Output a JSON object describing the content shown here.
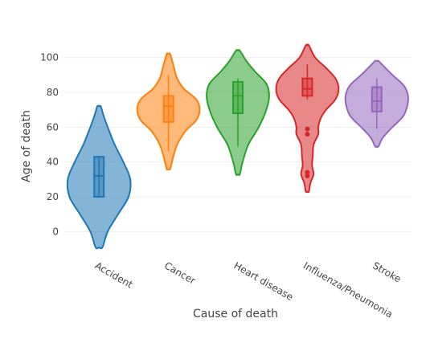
{
  "chart_data": {
    "type": "violin",
    "title": "",
    "xlabel": "Cause of death",
    "ylabel": "Age of death",
    "ylim": [
      -10,
      110
    ],
    "yticks": [
      0,
      20,
      40,
      60,
      80,
      100
    ],
    "grid": true,
    "legend": "none",
    "categories": [
      "Accident",
      "Cancer",
      "Heart disease",
      "Influenza/Pneumonia",
      "Stroke"
    ],
    "series": [
      {
        "category": "Accident",
        "color": "#1f77b4",
        "range": [
          -9,
          72
        ],
        "box": {
          "q1": 20,
          "median": 32,
          "q3": 43,
          "whisker_low": 20,
          "whisker_high": 43
        },
        "outliers": [],
        "density": [
          [
            -9,
            0.02
          ],
          [
            0,
            0.05
          ],
          [
            10,
            0.11
          ],
          [
            20,
            0.17
          ],
          [
            30,
            0.18
          ],
          [
            40,
            0.14
          ],
          [
            50,
            0.09
          ],
          [
            60,
            0.05
          ],
          [
            67,
            0.025
          ],
          [
            72,
            0.01
          ]
        ]
      },
      {
        "category": "Cancer",
        "color": "#ff7f0e",
        "range": [
          36,
          102
        ],
        "box": {
          "q1": 63,
          "median": 72,
          "q3": 78,
          "whisker_low": 46,
          "whisker_high": 90
        },
        "outliers": [],
        "density": [
          [
            36,
            0.01
          ],
          [
            42,
            0.025
          ],
          [
            50,
            0.05
          ],
          [
            58,
            0.1
          ],
          [
            64,
            0.16
          ],
          [
            70,
            0.18
          ],
          [
            76,
            0.16
          ],
          [
            82,
            0.09
          ],
          [
            88,
            0.05
          ],
          [
            95,
            0.03
          ],
          [
            102,
            0.01
          ]
        ]
      },
      {
        "category": "Heart disease",
        "color": "#2ca02c",
        "range": [
          33,
          104
        ],
        "box": {
          "q1": 68,
          "median": 78,
          "q3": 86,
          "whisker_low": 49,
          "whisker_high": 88
        },
        "outliers": [],
        "density": [
          [
            33,
            0.01
          ],
          [
            40,
            0.025
          ],
          [
            50,
            0.055
          ],
          [
            60,
            0.11
          ],
          [
            70,
            0.15
          ],
          [
            78,
            0.165
          ],
          [
            85,
            0.15
          ],
          [
            92,
            0.09
          ],
          [
            98,
            0.045
          ],
          [
            104,
            0.01
          ]
        ]
      },
      {
        "category": "Influenza/Pneumonia",
        "color": "#d62728",
        "range": [
          23,
          107
        ],
        "box": {
          "q1": 78,
          "median": 82,
          "q3": 88,
          "whisker_low": 76,
          "whisker_high": 96
        },
        "outliers": [
          59,
          56,
          34,
          32
        ],
        "density": [
          [
            23,
            0.01
          ],
          [
            28,
            0.02
          ],
          [
            33,
            0.04
          ],
          [
            38,
            0.03
          ],
          [
            44,
            0.035
          ],
          [
            50,
            0.04
          ],
          [
            56,
            0.07
          ],
          [
            60,
            0.07
          ],
          [
            65,
            0.085
          ],
          [
            70,
            0.12
          ],
          [
            76,
            0.18
          ],
          [
            82,
            0.2
          ],
          [
            88,
            0.18
          ],
          [
            94,
            0.12
          ],
          [
            100,
            0.05
          ],
          [
            107,
            0.01
          ]
        ]
      },
      {
        "category": "Stroke",
        "color": "#9467bd",
        "range": [
          49,
          98
        ],
        "box": {
          "q1": 69,
          "median": 75,
          "q3": 83,
          "whisker_low": 59,
          "whisker_high": 88
        },
        "outliers": [],
        "density": [
          [
            49,
            0.01
          ],
          [
            54,
            0.035
          ],
          [
            60,
            0.09
          ],
          [
            66,
            0.15
          ],
          [
            72,
            0.175
          ],
          [
            78,
            0.18
          ],
          [
            84,
            0.155
          ],
          [
            90,
            0.09
          ],
          [
            95,
            0.04
          ],
          [
            98,
            0.01
          ]
        ]
      }
    ]
  }
}
